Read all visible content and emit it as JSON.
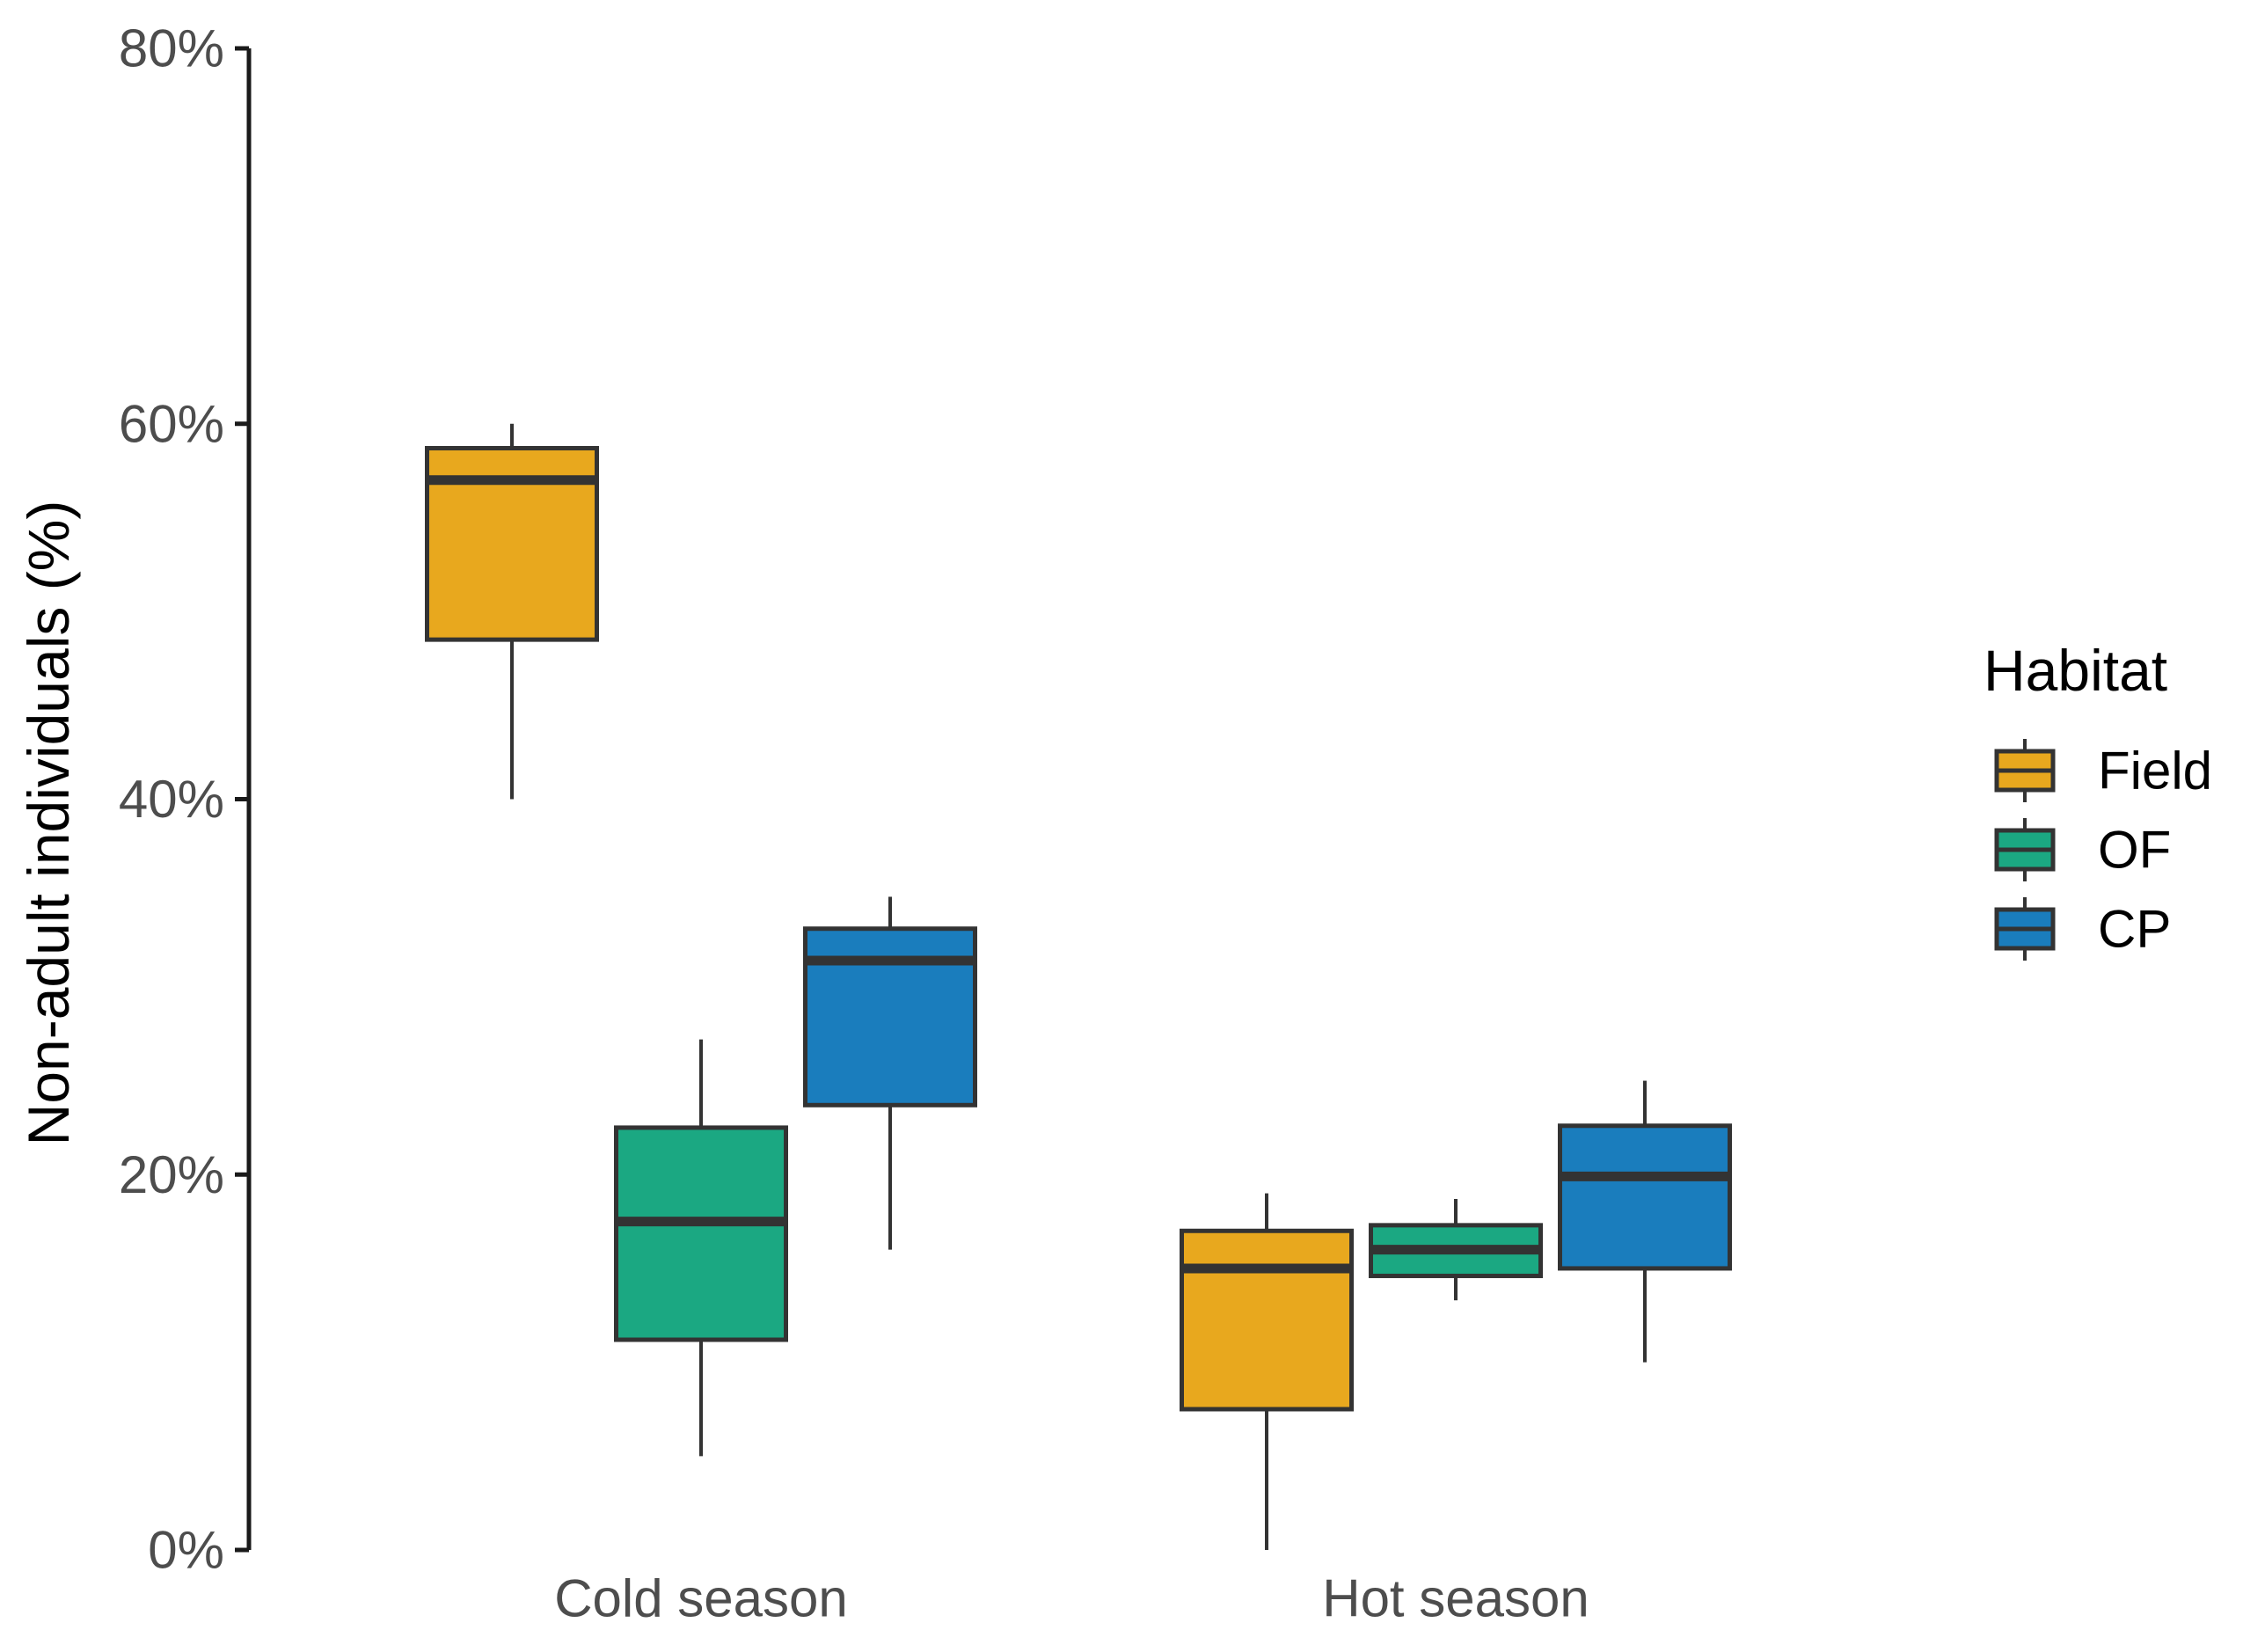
{
  "chart_data": {
    "type": "box",
    "ylabel": "Non-adult individuals (%)",
    "xlabel": "",
    "ylim": [
      0,
      80
    ],
    "y_ticks": [
      {
        "value": 0,
        "label": "0%"
      },
      {
        "value": 20,
        "label": "20%"
      },
      {
        "value": 40,
        "label": "40%"
      },
      {
        "value": 60,
        "label": "60%"
      },
      {
        "value": 80,
        "label": "80%"
      }
    ],
    "categories": [
      "Cold season",
      "Hot season"
    ],
    "legend": {
      "title": "Habitat",
      "placement": "right"
    },
    "series": [
      {
        "name": "Field",
        "color": "#E8A81E",
        "boxes": [
          {
            "min": 40.0,
            "q1": 48.5,
            "median": 57.0,
            "q3": 58.7,
            "max": 60.0
          },
          {
            "min": 0.0,
            "q1": 7.5,
            "median": 15.0,
            "q3": 17.0,
            "max": 19.0
          }
        ]
      },
      {
        "name": "OF",
        "color": "#1BA882",
        "boxes": [
          {
            "min": 5.0,
            "q1": 11.2,
            "median": 17.5,
            "q3": 22.5,
            "max": 27.2
          },
          {
            "min": 13.3,
            "q1": 14.6,
            "median": 16.0,
            "q3": 17.3,
            "max": 18.7
          }
        ]
      },
      {
        "name": "CP",
        "color": "#1A7DBD",
        "boxes": [
          {
            "min": 16.0,
            "q1": 23.7,
            "median": 31.4,
            "q3": 33.1,
            "max": 34.8
          },
          {
            "min": 10.0,
            "q1": 15.0,
            "median": 19.9,
            "q3": 22.6,
            "max": 25.0
          }
        ]
      }
    ],
    "grid": false,
    "outline_color": "#333333",
    "axis_color": "#1a1a1a"
  }
}
